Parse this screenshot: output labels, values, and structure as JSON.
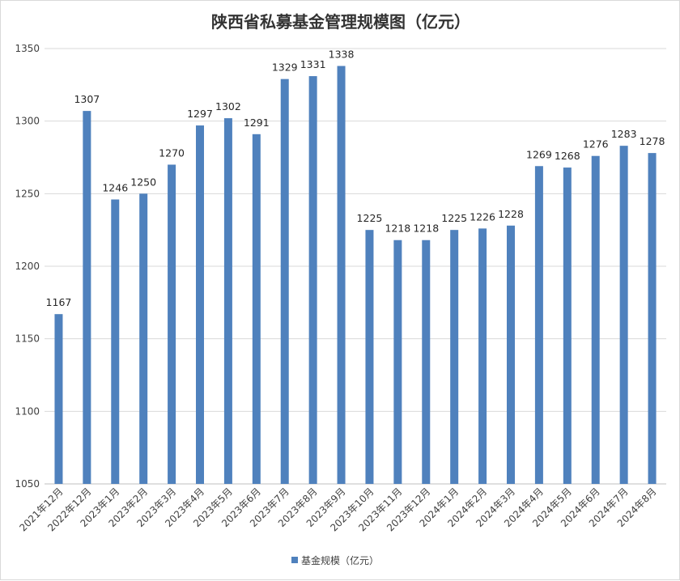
{
  "chart_data": {
    "type": "bar",
    "title": "陕西省私募基金管理规模图（亿元）",
    "categories": [
      "2021年12月",
      "2022年12月",
      "2023年1月",
      "2023年2月",
      "2023年3月",
      "2023年4月",
      "2023年5月",
      "2023年6月",
      "2023年7月",
      "2023年8月",
      "2023年9月",
      "2023年10月",
      "2023年11月",
      "2023年12月",
      "2024年1月",
      "2024年2月",
      "2024年3月",
      "2024年4月",
      "2024年5月",
      "2024年6月",
      "2024年7月",
      "2024年8月"
    ],
    "series": [
      {
        "name": "基金规模（亿元）",
        "color": "#4f81bd",
        "values": [
          1167,
          1307,
          1246,
          1250,
          1270,
          1297,
          1302,
          1291,
          1329,
          1331,
          1338,
          1225,
          1218,
          1218,
          1225,
          1226,
          1228,
          1269,
          1268,
          1276,
          1283,
          1278
        ]
      }
    ],
    "ylim": [
      1050,
      1350
    ],
    "yticks": [
      1050,
      1100,
      1150,
      1200,
      1250,
      1300,
      1350
    ],
    "xlabel": "",
    "ylabel": "",
    "grid": true,
    "data_labels": true,
    "legend_position": "bottom"
  }
}
